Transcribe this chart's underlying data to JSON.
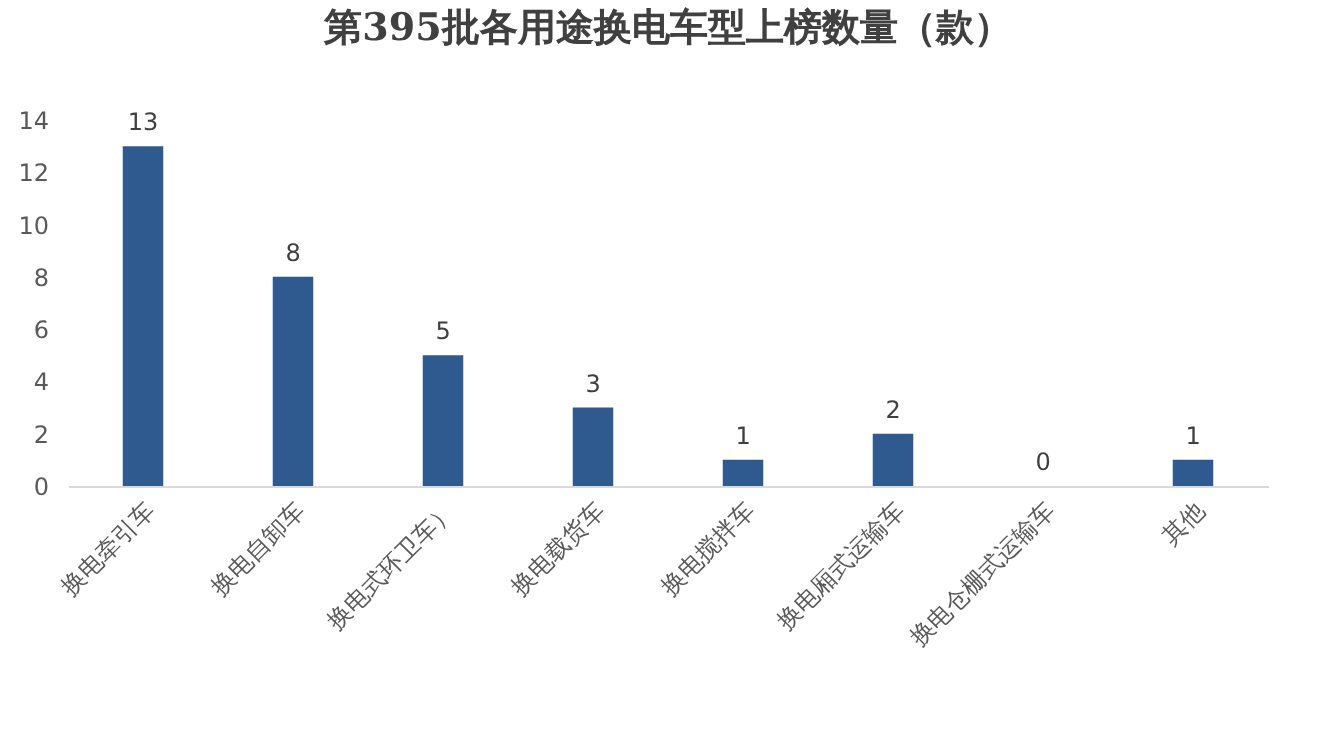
{
  "chart_data": {
    "type": "bar",
    "title": "第395批各用途换电车型上榜数量（款）",
    "categories": [
      "换电牵引车",
      "换电自卸车",
      "换电式环卫车）",
      "换电载货车",
      "换电搅拌车",
      "换电厢式运输车",
      "换电仓栅式运输车",
      "其他"
    ],
    "values": [
      13,
      8,
      5,
      3,
      1,
      2,
      0,
      1
    ],
    "color": "#2f5a8f",
    "ylim": [
      0,
      14
    ],
    "yticks": [
      0,
      2,
      4,
      6,
      8,
      10,
      12,
      14
    ],
    "grid": false,
    "data_labels": true
  }
}
